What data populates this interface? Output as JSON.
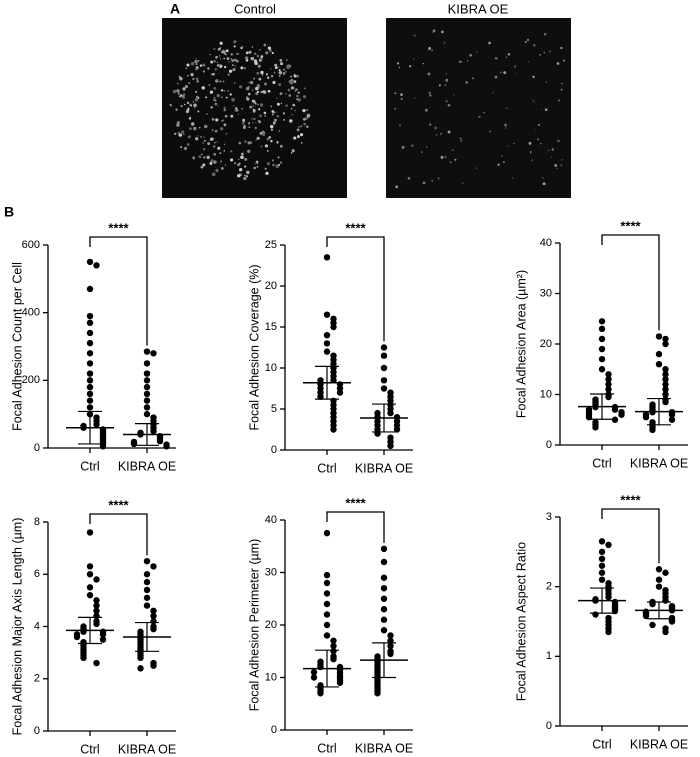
{
  "panel_labels": [
    "A",
    "B"
  ],
  "images": [
    {
      "label": "Control"
    },
    {
      "label": "KIBRA OE"
    }
  ],
  "chart_data": [
    {
      "type": "swarm",
      "y_label": "Focal Adhesion Count per Cell",
      "categories": [
        "Ctrl",
        "KIBRA OE"
      ],
      "significance": "****",
      "values": [
        [
          550,
          540,
          470,
          390,
          370,
          340,
          310,
          280,
          250,
          220,
          200,
          180,
          160,
          140,
          120,
          100,
          90,
          80,
          70,
          65,
          60,
          55,
          50,
          45,
          40,
          35,
          30,
          25,
          20,
          15,
          10,
          5
        ],
        [
          285,
          280,
          250,
          220,
          200,
          180,
          160,
          140,
          120,
          100,
          90,
          80,
          70,
          60,
          50,
          45,
          40,
          35,
          30,
          25,
          20,
          18,
          15,
          12,
          10,
          5
        ]
      ],
      "means": [
        60,
        40
      ],
      "errors": [
        48,
        32
      ],
      "ylim": [
        0,
        600
      ],
      "yticks": [
        0,
        200,
        400,
        600
      ]
    },
    {
      "type": "swarm",
      "y_label": "Focal Adhesion Coverage (%)",
      "categories": [
        "Ctrl",
        "KIBRA OE"
      ],
      "significance": "****",
      "values": [
        [
          23.5,
          16.5,
          16,
          15.5,
          15,
          14,
          13,
          12,
          11.5,
          11,
          10.5,
          10,
          9.5,
          9,
          8.5,
          8.5,
          8,
          8,
          7.5,
          7.5,
          7,
          7,
          6.5,
          6,
          5.5,
          5,
          4.5,
          4,
          3.5,
          3,
          2.5
        ],
        [
          12.5,
          11.5,
          10,
          8.5,
          7.5,
          7,
          6.5,
          6,
          5.5,
          5,
          4.5,
          4.5,
          4,
          4,
          3.5,
          3.5,
          3,
          3,
          2.5,
          2.5,
          2,
          1.5,
          1,
          0.5
        ]
      ],
      "means": [
        8.2,
        3.9
      ],
      "errors": [
        2,
        1.7
      ],
      "ylim": [
        0,
        25
      ],
      "yticks": [
        0,
        5,
        10,
        15,
        20,
        25
      ]
    },
    {
      "type": "swarm",
      "y_label": "Focal Adhesion Area (µm²)",
      "categories": [
        "Ctrl",
        "KIBRA OE"
      ],
      "significance": "****",
      "values": [
        [
          24.5,
          23,
          21,
          19,
          17,
          15,
          14,
          13,
          12,
          11,
          10,
          9.5,
          9,
          8.5,
          8,
          7.5,
          7.5,
          7,
          7,
          6.5,
          6.5,
          6,
          6,
          5.5,
          5,
          4.5,
          4,
          3.5
        ],
        [
          21.5,
          21,
          20,
          18,
          16,
          15,
          14,
          13,
          12,
          11,
          10,
          9,
          8.5,
          8,
          7.5,
          7,
          6.5,
          6.5,
          6,
          6,
          5.5,
          5,
          4.5,
          4,
          3.5,
          3
        ]
      ],
      "means": [
        7.6,
        6.6
      ],
      "errors": [
        2.5,
        2.6
      ],
      "ylim": [
        0,
        40
      ],
      "yticks": [
        0,
        10,
        20,
        30,
        40
      ]
    },
    {
      "type": "swarm",
      "y_label": "Focal Adhesion Major Axis Length (µm)",
      "categories": [
        "Ctrl",
        "KIBRA OE"
      ],
      "significance": "****",
      "values": [
        [
          7.6,
          6.3,
          6,
          5.8,
          5.5,
          5.2,
          5,
          4.8,
          4.6,
          4.4,
          4.2,
          4.1,
          4,
          3.9,
          3.8,
          3.8,
          3.7,
          3.7,
          3.6,
          3.5,
          3.4,
          3.3,
          3.2,
          3.1,
          3,
          2.9,
          2.8,
          2.6
        ],
        [
          6.5,
          6.3,
          6,
          5.7,
          5.4,
          5.1,
          4.8,
          4.6,
          4.4,
          4.2,
          4,
          3.9,
          3.8,
          3.7,
          3.6,
          3.5,
          3.4,
          3.3,
          3.2,
          3.1,
          3,
          2.9,
          2.8,
          2.6,
          2.5,
          2.4
        ]
      ],
      "means": [
        3.85,
        3.6
      ],
      "errors": [
        0.5,
        0.55
      ],
      "ylim": [
        0,
        8
      ],
      "yticks": [
        0,
        2,
        4,
        6,
        8
      ]
    },
    {
      "type": "swarm",
      "y_label": "Focal Adhesion Perimeter (µm)",
      "categories": [
        "Ctrl",
        "KIBRA OE"
      ],
      "significance": "****",
      "values": [
        [
          37.5,
          29.5,
          28,
          26,
          24,
          22,
          20,
          18,
          17,
          16,
          15,
          14,
          13.5,
          13,
          12.5,
          12,
          12,
          11.5,
          11,
          11,
          10.5,
          10,
          10,
          9.5,
          9,
          8.5,
          8,
          7.5,
          7
        ],
        [
          34.5,
          32,
          29,
          27,
          25,
          23,
          21,
          19,
          18,
          17,
          16,
          15,
          14.5,
          14,
          13.5,
          13,
          12.5,
          12,
          11.5,
          11,
          10.5,
          10,
          9.5,
          9,
          8.5,
          8,
          7.5,
          7
        ]
      ],
      "means": [
        11.7,
        13.3
      ],
      "errors": [
        3.5,
        3.3
      ],
      "ylim": [
        0,
        40
      ],
      "yticks": [
        0,
        10,
        20,
        30,
        40
      ]
    },
    {
      "type": "swarm",
      "y_label": "Focal Adhesion Aspect Ratio",
      "categories": [
        "Ctrl",
        "KIBRA OE"
      ],
      "significance": "****",
      "values": [
        [
          2.65,
          2.6,
          2.5,
          2.4,
          2.3,
          2.2,
          2.1,
          2.05,
          2,
          1.95,
          1.9,
          1.85,
          1.82,
          1.8,
          1.78,
          1.75,
          1.72,
          1.7,
          1.68,
          1.65,
          1.6,
          1.55,
          1.5,
          1.45,
          1.4,
          1.35
        ],
        [
          2.25,
          2.2,
          2.1,
          2,
          1.95,
          1.9,
          1.85,
          1.8,
          1.78,
          1.75,
          1.72,
          1.7,
          1.68,
          1.66,
          1.64,
          1.62,
          1.6,
          1.58,
          1.55,
          1.52,
          1.5,
          1.45,
          1.4,
          1.35
        ]
      ],
      "means": [
        1.8,
        1.66
      ],
      "errors": [
        0.18,
        0.12
      ],
      "ylim": [
        0,
        3
      ],
      "yticks": [
        0,
        1,
        2,
        3
      ]
    }
  ]
}
